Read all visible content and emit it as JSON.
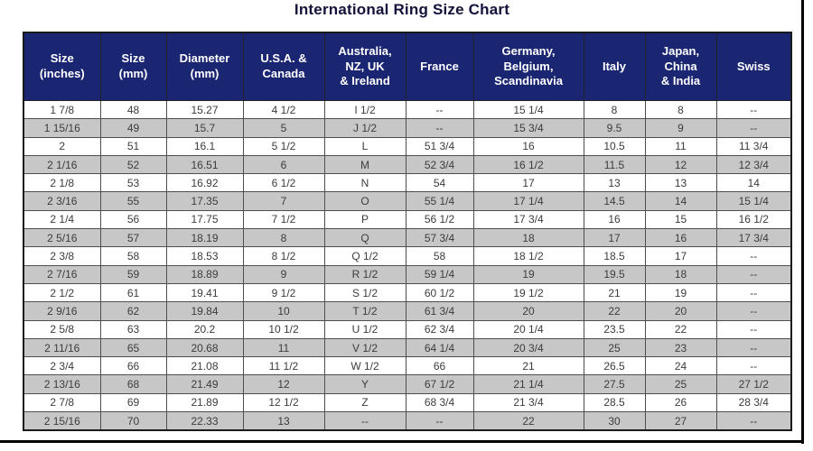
{
  "title": "International Ring Size Chart",
  "chart_data": {
    "type": "table",
    "title": "International Ring Size Chart",
    "columns": [
      "Size (inches)",
      "Size (mm)",
      "Diameter (mm)",
      "U.S.A. & Canada",
      "Australia, NZ, UK & Ireland",
      "France",
      "Germany, Belgium, Scandinavia",
      "Italy",
      "Japan, China & India",
      "Swiss"
    ],
    "rows": [
      [
        "1 7/8",
        "48",
        "15.27",
        "4 1/2",
        "I 1/2",
        "--",
        "15 1/4",
        "8",
        "8",
        "--"
      ],
      [
        "1 15/16",
        "49",
        "15.7",
        "5",
        "J 1/2",
        "--",
        "15 3/4",
        "9.5",
        "9",
        "--"
      ],
      [
        "2",
        "51",
        "16.1",
        "5 1/2",
        "L",
        "51 3/4",
        "16",
        "10.5",
        "11",
        "11 3/4"
      ],
      [
        "2 1/16",
        "52",
        "16.51",
        "6",
        "M",
        "52 3/4",
        "16 1/2",
        "11.5",
        "12",
        "12 3/4"
      ],
      [
        "2 1/8",
        "53",
        "16.92",
        "6 1/2",
        "N",
        "54",
        "17",
        "13",
        "13",
        "14"
      ],
      [
        "2 3/16",
        "55",
        "17.35",
        "7",
        "O",
        "55 1/4",
        "17 1/4",
        "14.5",
        "14",
        "15 1/4"
      ],
      [
        "2 1/4",
        "56",
        "17.75",
        "7 1/2",
        "P",
        "56 1/2",
        "17 3/4",
        "16",
        "15",
        "16 1/2"
      ],
      [
        "2 5/16",
        "57",
        "18.19",
        "8",
        "Q",
        "57 3/4",
        "18",
        "17",
        "16",
        "17 3/4"
      ],
      [
        "2 3/8",
        "58",
        "18.53",
        "8 1/2",
        "Q 1/2",
        "58",
        "18 1/2",
        "18.5",
        "17",
        "--"
      ],
      [
        "2 7/16",
        "59",
        "18.89",
        "9",
        "R 1/2",
        "59 1/4",
        "19",
        "19.5",
        "18",
        "--"
      ],
      [
        "2 1/2",
        "61",
        "19.41",
        "9 1/2",
        "S 1/2",
        "60 1/2",
        "19 1/2",
        "21",
        "19",
        "--"
      ],
      [
        "2 9/16",
        "62",
        "19.84",
        "10",
        "T 1/2",
        "61 3/4",
        "20",
        "22",
        "20",
        "--"
      ],
      [
        "2 5/8",
        "63",
        "20.2",
        "10 1/2",
        "U 1/2",
        "62 3/4",
        "20 1/4",
        "23.5",
        "22",
        "--"
      ],
      [
        "2 11/16",
        "65",
        "20.68",
        "11",
        "V 1/2",
        "64 1/4",
        "20 3/4",
        "25",
        "23",
        "--"
      ],
      [
        "2 3/4",
        "66",
        "21.08",
        "11 1/2",
        "W 1/2",
        "66",
        "21",
        "26.5",
        "24",
        "--"
      ],
      [
        "2 13/16",
        "68",
        "21.49",
        "12",
        "Y",
        "67 1/2",
        "21 1/4",
        "27.5",
        "25",
        "27 1/2"
      ],
      [
        "2 7/8",
        "69",
        "21.89",
        "12 1/2",
        "Z",
        "68 3/4",
        "21 3/4",
        "28.5",
        "26",
        "28 3/4"
      ],
      [
        "2 15/16",
        "70",
        "22.33",
        "13",
        "--",
        "--",
        "22",
        "30",
        "27",
        "--"
      ]
    ]
  },
  "table": {
    "header_lines": [
      "Size\n(inches)",
      "Size\n(mm)",
      "Diameter\n(mm)",
      "U.S.A. &\nCanada",
      "Australia,\nNZ, UK\n& Ireland",
      "France",
      "Germany,\nBelgium,\nScandinavia",
      "Italy",
      "Japan,\nChina\n& India",
      "Swiss"
    ]
  },
  "colors": {
    "header_bg": "#1b2673",
    "header_text": "#ffffff",
    "row_alt": "#c7c7c7",
    "row_white": "#ffffff",
    "grid": "#4f4f4f",
    "outer": "#1a1a1a",
    "title_color": "#12123a",
    "cell_text": "#3c3c3c",
    "frame": "#000000"
  }
}
